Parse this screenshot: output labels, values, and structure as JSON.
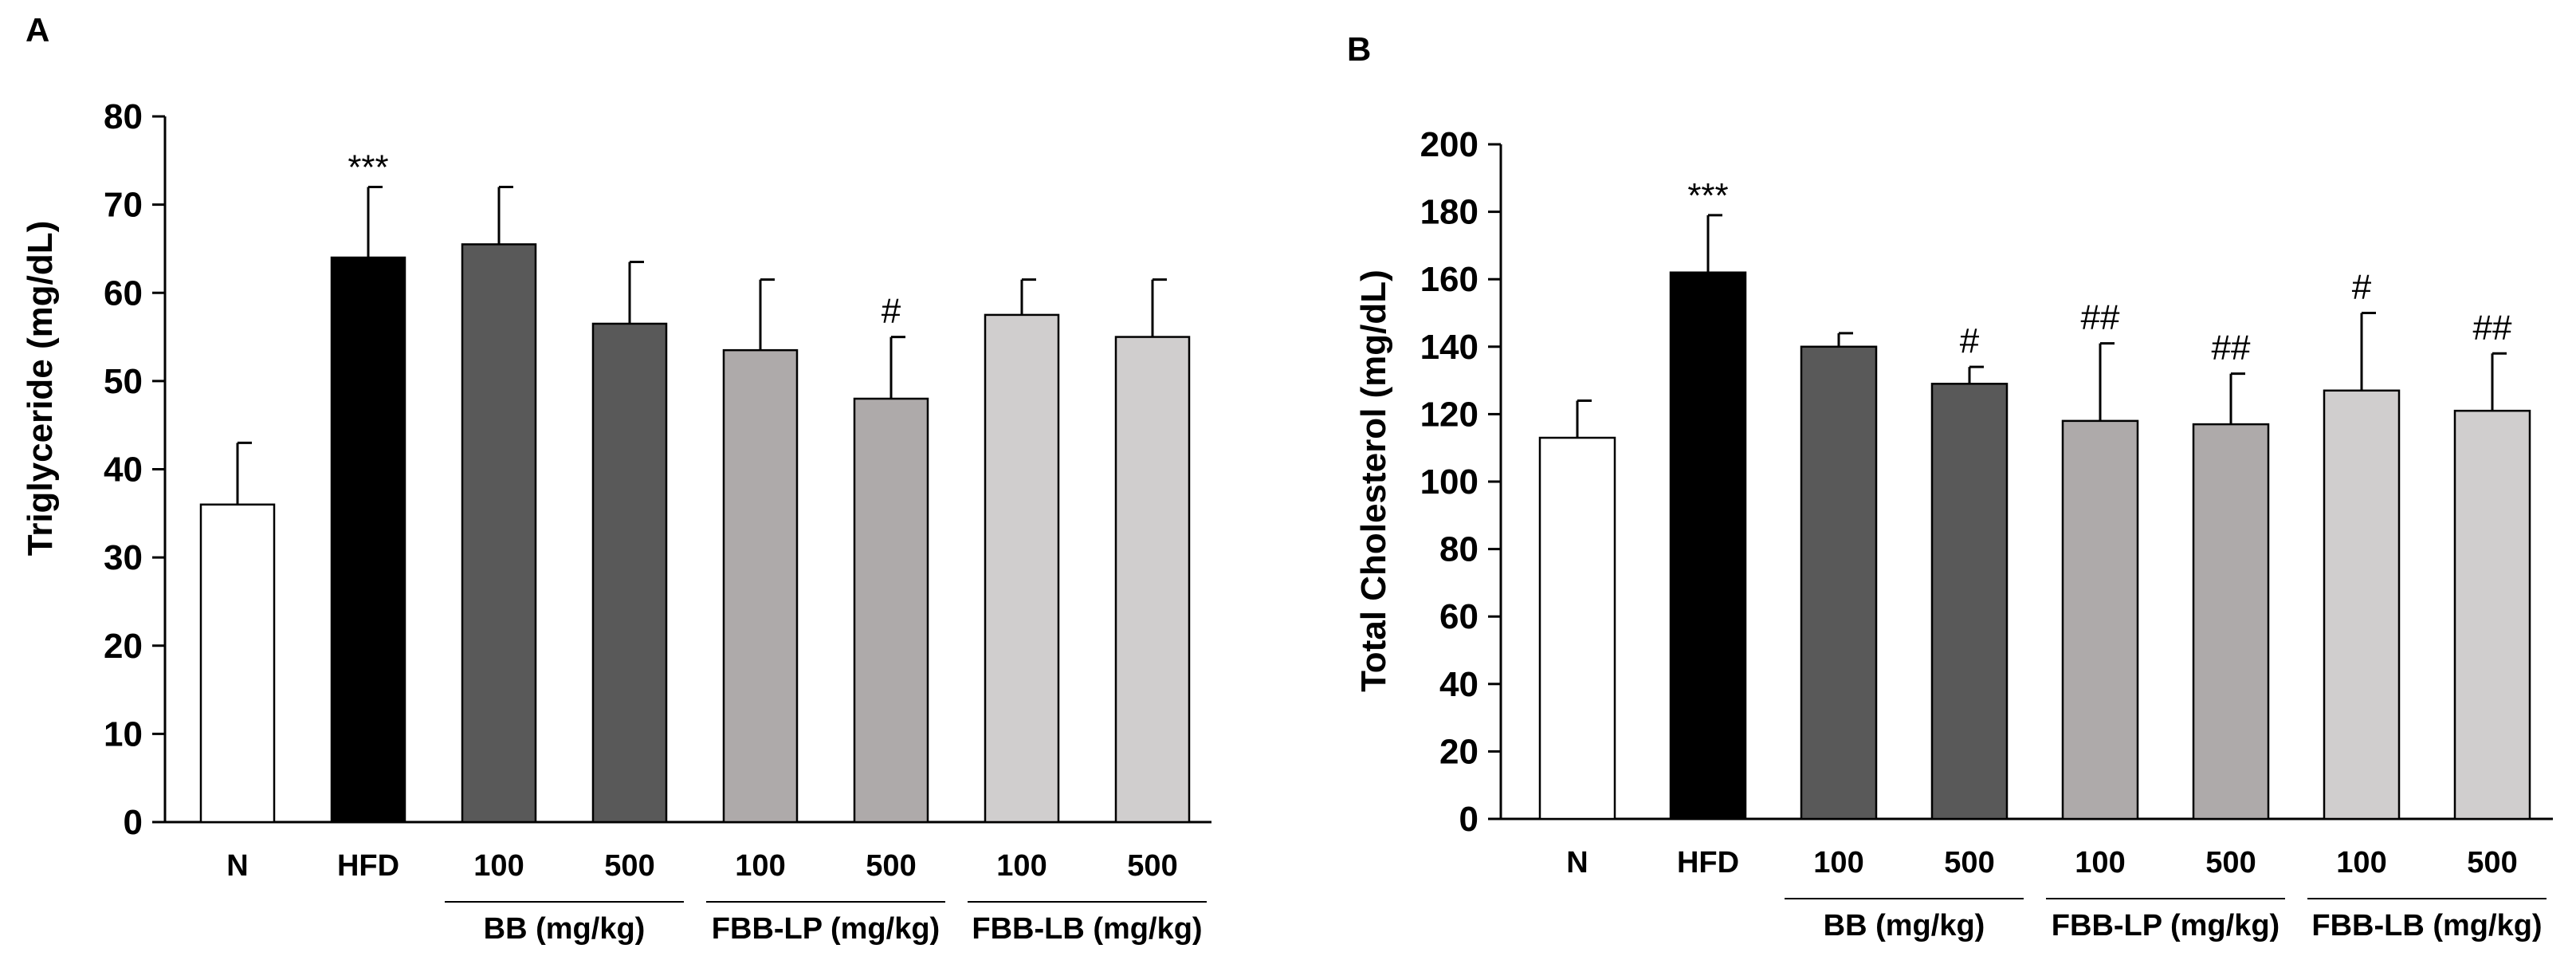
{
  "chart_data": [
    {
      "panel": "A",
      "type": "bar",
      "ylabel": "Triglyceride (mg/dL)",
      "ylim": [
        0,
        80
      ],
      "yticks": [
        0,
        10,
        20,
        30,
        40,
        50,
        60,
        70,
        80
      ],
      "categories": [
        "N",
        "HFD",
        "100",
        "500",
        "100",
        "500",
        "100",
        "500"
      ],
      "values": [
        36,
        64,
        65.5,
        56.5,
        53.5,
        48,
        57.5,
        55
      ],
      "errors": [
        7,
        8,
        6.5,
        7,
        8,
        7,
        4,
        6.5
      ],
      "annotations": [
        "",
        "***",
        "",
        "",
        "",
        "#",
        "",
        ""
      ],
      "colors": [
        "#ffffff",
        "#000000",
        "#595959",
        "#595959",
        "#aeaaaa",
        "#aeaaaa",
        "#d0cece",
        "#d0cece"
      ],
      "groups": [
        {
          "label": "BB (mg/kg)",
          "span": [
            2,
            3
          ]
        },
        {
          "label": "FBB-LP (mg/kg)",
          "span": [
            4,
            5
          ]
        },
        {
          "label": "FBB-LB (mg/kg)",
          "span": [
            6,
            7
          ]
        }
      ]
    },
    {
      "panel": "B",
      "type": "bar",
      "ylabel": "Total Cholesterol (mg/dL)",
      "ylim": [
        0,
        200
      ],
      "yticks": [
        0,
        20,
        40,
        60,
        80,
        100,
        120,
        140,
        160,
        180,
        200
      ],
      "categories": [
        "N",
        "HFD",
        "100",
        "500",
        "100",
        "500",
        "100",
        "500"
      ],
      "values": [
        113,
        162,
        140,
        129,
        118,
        117,
        127,
        121
      ],
      "errors": [
        11,
        17,
        4,
        5,
        23,
        15,
        23,
        17
      ],
      "annotations": [
        "",
        "***",
        "",
        "#",
        "##",
        "##",
        "#",
        "##"
      ],
      "colors": [
        "#ffffff",
        "#000000",
        "#595959",
        "#595959",
        "#aeaaaa",
        "#aeaaaa",
        "#d0cece",
        "#d0cece"
      ],
      "groups": [
        {
          "label": "BB (mg/kg)",
          "span": [
            2,
            3
          ]
        },
        {
          "label": "FBB-LP (mg/kg)",
          "span": [
            4,
            5
          ]
        },
        {
          "label": "FBB-LB (mg/kg)",
          "span": [
            6,
            7
          ]
        }
      ]
    }
  ]
}
